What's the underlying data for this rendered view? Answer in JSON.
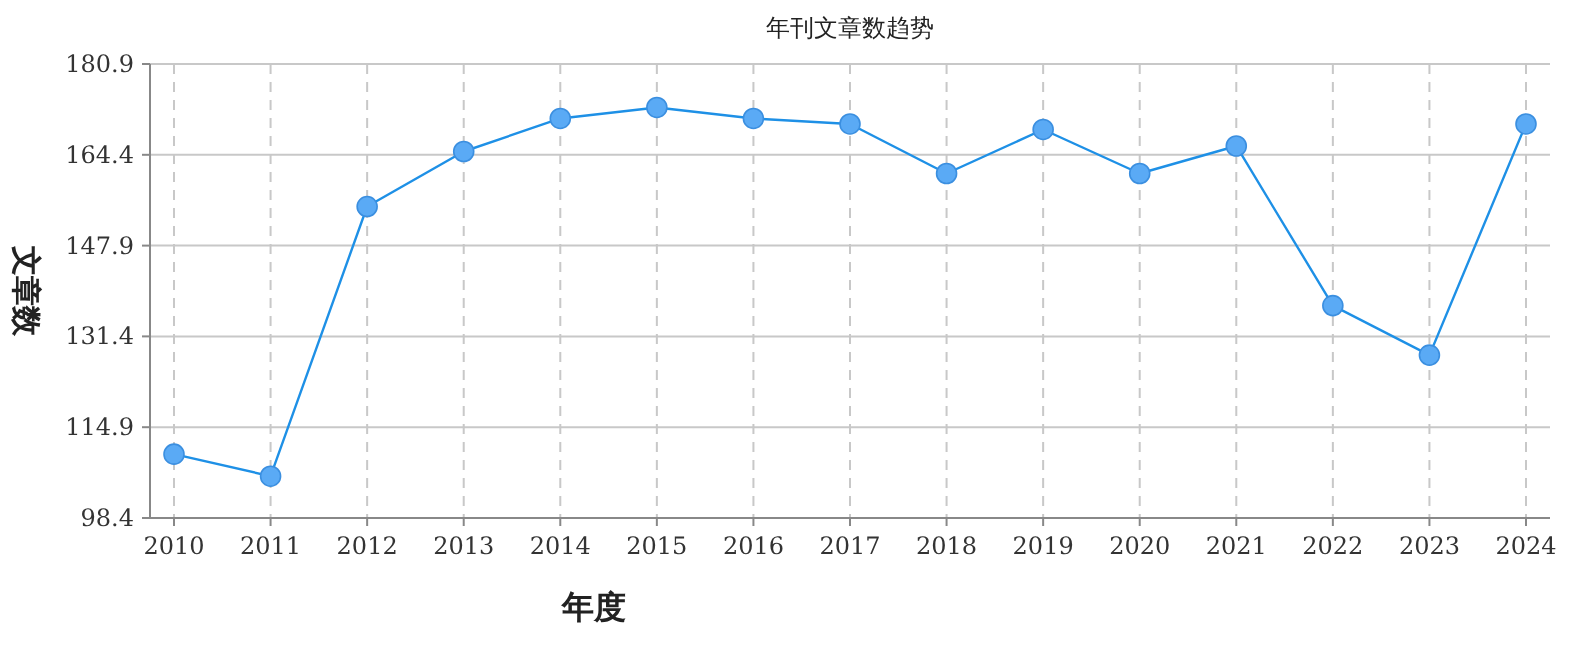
{
  "chart_data": {
    "type": "line",
    "title": "年刊文章数趋势",
    "xlabel": "年度",
    "ylabel": "文章数",
    "categories": [
      "2010",
      "2011",
      "2012",
      "2013",
      "2014",
      "2015",
      "2016",
      "2017",
      "2018",
      "2019",
      "2020",
      "2021",
      "2022",
      "2023",
      "2024"
    ],
    "values": [
      110,
      106,
      155,
      165,
      171,
      173,
      171,
      170,
      161,
      169,
      161,
      166,
      137,
      128,
      170
    ],
    "color": "#1e90e6",
    "marker": "circle",
    "ylim": [
      98.4,
      180.9
    ],
    "yticks": [
      98.4,
      114.9,
      131.4,
      147.9,
      164.4,
      180.9
    ],
    "grid": true
  }
}
